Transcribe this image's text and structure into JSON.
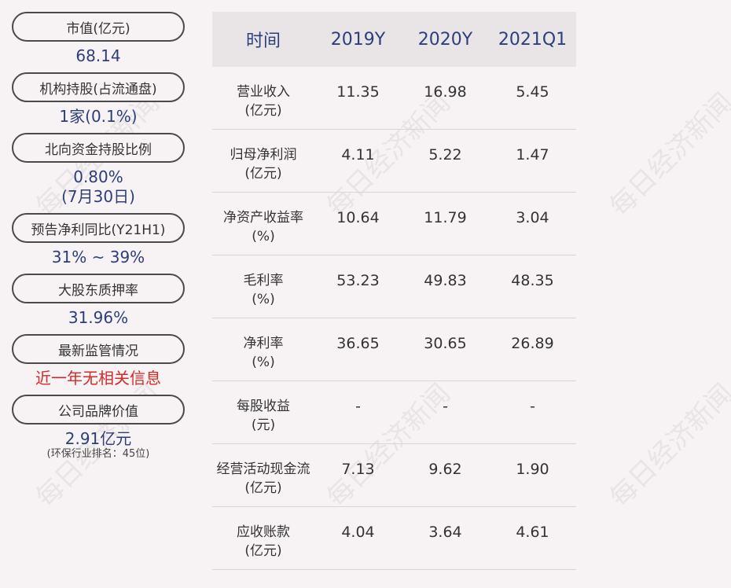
{
  "watermark": "每日经济新闻",
  "left": {
    "items": [
      {
        "label": "市值(亿元)",
        "value": "68.14"
      },
      {
        "label": "机构持股(占流通盘)",
        "value": "1家(0.1%)"
      },
      {
        "label": "北向资金持股比例",
        "value": "0.80%",
        "value2": "(7月30日)"
      },
      {
        "label": "预告净利同比(Y21H1)",
        "value": "31% ~ 39%"
      },
      {
        "label": "大股东质押率",
        "value": "31.96%"
      },
      {
        "label": "最新监管情况",
        "value": "近一年无相关信息"
      },
      {
        "label": "公司品牌价值",
        "value": "2.91亿元",
        "note": "(环保行业排名：45位)"
      }
    ]
  },
  "table": {
    "headers": [
      "时间",
      "2019Y",
      "2020Y",
      "2021Q1"
    ],
    "rows": [
      {
        "name": "营业收入",
        "unit": "(亿元)",
        "v": [
          "11.35",
          "16.98",
          "5.45"
        ]
      },
      {
        "name": "归母净利润",
        "unit": "(亿元)",
        "v": [
          "4.11",
          "5.22",
          "1.47"
        ]
      },
      {
        "name": "净资产收益率",
        "unit": "(%)",
        "v": [
          "10.64",
          "11.79",
          "3.04"
        ]
      },
      {
        "name": "毛利率",
        "unit": "(%)",
        "v": [
          "53.23",
          "49.83",
          "48.35"
        ]
      },
      {
        "name": "净利率",
        "unit": "(%)",
        "v": [
          "36.65",
          "30.65",
          "26.89"
        ]
      },
      {
        "name": "每股收益",
        "unit": "(元)",
        "v": [
          "-",
          "-",
          "-"
        ]
      },
      {
        "name": "经营活动现金流",
        "unit": "(亿元)",
        "v": [
          "7.13",
          "9.62",
          "1.90"
        ]
      },
      {
        "name": "应收账款",
        "unit": "(亿元)",
        "v": [
          "4.04",
          "3.64",
          "4.61"
        ]
      }
    ]
  }
}
